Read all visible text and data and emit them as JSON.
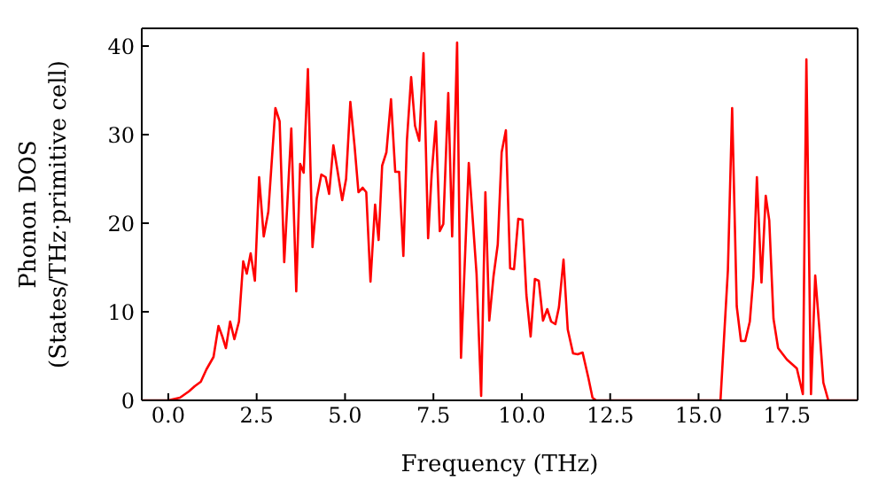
{
  "chart_data": {
    "type": "line",
    "xlabel": "Frequency (THz)",
    "ylabel": "Phonon DOS\n(States/THz·primitive cell)",
    "xlim": [
      -0.75,
      19.5
    ],
    "ylim": [
      0,
      42
    ],
    "xticks": [
      {
        "value": 0,
        "label": "0.0"
      },
      {
        "value": 2.5,
        "label": "2.5"
      },
      {
        "value": 5,
        "label": "5.0"
      },
      {
        "value": 7.5,
        "label": "7.5"
      },
      {
        "value": 10,
        "label": "10.0"
      },
      {
        "value": 12.5,
        "label": "12.5"
      },
      {
        "value": 15,
        "label": "15.0"
      },
      {
        "value": 17.5,
        "label": "17.5"
      }
    ],
    "yticks": [
      0,
      10,
      20,
      30,
      40
    ],
    "grid": false,
    "legend": false,
    "marker": "none",
    "line_style": "solid",
    "x": [
      -0.75,
      0,
      0.33,
      0.58,
      0.75,
      0.92,
      1.08,
      1.28,
      1.42,
      1.53,
      1.63,
      1.75,
      1.87,
      2,
      2.12,
      2.22,
      2.33,
      2.45,
      2.57,
      2.7,
      2.83,
      3.03,
      3.15,
      3.28,
      3.48,
      3.62,
      3.73,
      3.83,
      3.95,
      4.08,
      4.2,
      4.33,
      4.45,
      4.55,
      4.67,
      4.78,
      4.92,
      5.03,
      5.15,
      5.27,
      5.38,
      5.5,
      5.6,
      5.72,
      5.85,
      5.95,
      6.05,
      6.17,
      6.3,
      6.42,
      6.53,
      6.65,
      6.75,
      6.87,
      6.98,
      7.1,
      7.22,
      7.35,
      7.45,
      7.57,
      7.68,
      7.78,
      7.92,
      8.03,
      8.17,
      8.28,
      8.5,
      8.72,
      8.85,
      8.97,
      9.08,
      9.2,
      9.32,
      9.43,
      9.55,
      9.67,
      9.78,
      9.9,
      10.02,
      10.13,
      10.25,
      10.37,
      10.48,
      10.6,
      10.72,
      10.83,
      10.95,
      11.05,
      11.18,
      11.3,
      11.45,
      11.58,
      11.72,
      11.88,
      12,
      12.1,
      15.62,
      15.83,
      15.95,
      16.08,
      16.2,
      16.32,
      16.45,
      16.55,
      16.65,
      16.78,
      16.9,
      17,
      17.12,
      17.25,
      17.5,
      17.67,
      17.78,
      17.95,
      18.05,
      18.18,
      18.3,
      18.42,
      18.53,
      18.67,
      19.5
    ],
    "series": [
      {
        "color": "#ff0000",
        "values": [
          0,
          0,
          0.3,
          1,
          1.6,
          2.1,
          3.5,
          4.9,
          8.4,
          7.2,
          5.9,
          8.9,
          6.9,
          8.9,
          15.7,
          14.3,
          16.6,
          13.5,
          25.2,
          18.5,
          21.3,
          33,
          31.5,
          15.6,
          30.7,
          12.3,
          26.7,
          25.7,
          37.4,
          17.3,
          22.8,
          25.5,
          25.2,
          23.3,
          28.8,
          26.1,
          22.6,
          25,
          33.7,
          28.7,
          23.5,
          24,
          23.5,
          13.4,
          22.1,
          18.1,
          26.5,
          28,
          34,
          25.8,
          25.8,
          16.3,
          29.3,
          36.5,
          31,
          29.3,
          39.2,
          18.3,
          25.5,
          31.5,
          19.1,
          19.9,
          34.7,
          18.5,
          40.4,
          4.8,
          26.8,
          14.3,
          0.5,
          23.5,
          9,
          14,
          17.6,
          28,
          30.5,
          14.9,
          14.8,
          20.5,
          20.4,
          11.9,
          7.2,
          13.7,
          13.5,
          9,
          10.3,
          8.9,
          8.6,
          10.5,
          15.9,
          8,
          5.3,
          5.2,
          5.4,
          2.6,
          0.3,
          0,
          0,
          14.7,
          33,
          10.6,
          6.7,
          6.7,
          8.9,
          13.9,
          25.2,
          13.3,
          23.1,
          20.3,
          9.2,
          5.9,
          4.6,
          4,
          3.6,
          0.7,
          38.5,
          0.7,
          14.1,
          8,
          2,
          0,
          0
        ]
      }
    ]
  }
}
